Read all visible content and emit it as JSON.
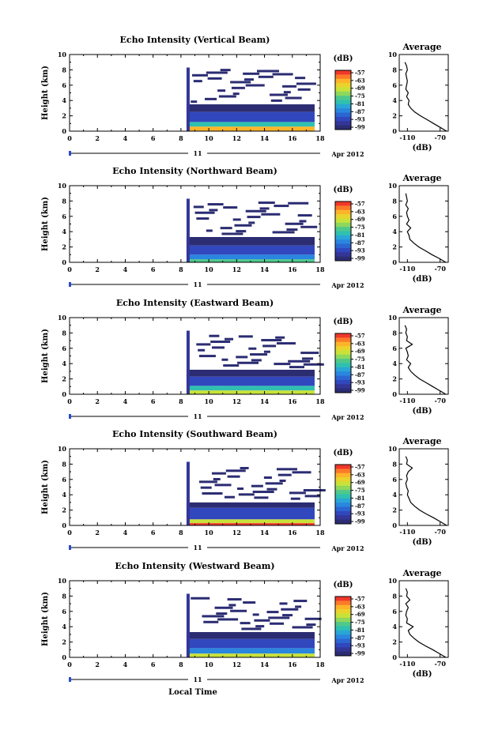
{
  "colorbar": {
    "unit": "(dB)",
    "labels": [
      "-57",
      "-63",
      "-69",
      "-75",
      "-81",
      "-87",
      "-93",
      "-99"
    ],
    "colors": [
      "#f0382b",
      "#fc7a2a",
      "#fdb42a",
      "#ead32c",
      "#c9e23a",
      "#8ed85c",
      "#4fc88b",
      "#2fc0b0",
      "#29a6d6",
      "#2a86de",
      "#2c66d2",
      "#3147bd",
      "#333697",
      "#2b2c72"
    ]
  },
  "chart_data": [
    {
      "type": "heatmap",
      "title": "Echo Intensity (Vertical Beam)",
      "ylabel": "Height (km)",
      "x_ticks": [
        "0",
        "2",
        "4",
        "6",
        "8",
        "10",
        "12",
        "14",
        "16",
        "18"
      ],
      "y_ticks": [
        "0",
        "2",
        "4",
        "6",
        "8",
        "10"
      ],
      "xlim": [
        0,
        18
      ],
      "ylim": [
        0,
        10
      ],
      "date_label": "Apr 2012",
      "day_label": "11",
      "data_start_hour": 8.4,
      "data_end_hour": 17.6,
      "echo_layers": [
        {
          "bottom_km": 0.0,
          "top_km": 0.6,
          "level_db": -63
        },
        {
          "bottom_km": 0.6,
          "top_km": 1.2,
          "level_db": -81
        },
        {
          "bottom_km": 1.2,
          "top_km": 2.5,
          "level_db": -93
        },
        {
          "bottom_km": 2.5,
          "top_km": 3.5,
          "level_db": -99
        }
      ],
      "cloud_top_km": 3.5,
      "average_profile": {
        "title": "Average",
        "xlabel": "(dB)",
        "x_ticks": [
          "-110",
          "-70"
        ],
        "y_ticks": [
          "0",
          "2",
          "4",
          "6",
          "8",
          "10"
        ],
        "xlim": [
          -120,
          -60
        ],
        "ylim": [
          0,
          10
        ],
        "height_km": [
          0,
          0.5,
          1,
          1.5,
          2,
          2.5,
          3,
          3.5,
          4,
          4.5,
          5,
          5.5,
          6,
          6.5,
          7,
          7.5,
          8,
          8.5,
          9
        ],
        "db": [
          -62,
          -70,
          -78,
          -86,
          -94,
          -101,
          -106,
          -109,
          -108,
          -111,
          -109,
          -112,
          -111,
          -110,
          -111,
          -112,
          -110,
          -111,
          -113
        ]
      }
    },
    {
      "type": "heatmap",
      "title": "Echo Intensity (Northward Beam)",
      "ylabel": "Height (km)",
      "x_ticks": [
        "0",
        "2",
        "4",
        "6",
        "8",
        "10",
        "12",
        "14",
        "16",
        "18"
      ],
      "y_ticks": [
        "0",
        "2",
        "4",
        "6",
        "8",
        "10"
      ],
      "xlim": [
        0,
        18
      ],
      "ylim": [
        0,
        10
      ],
      "date_label": "Apr 2012",
      "day_label": "11",
      "data_start_hour": 8.4,
      "data_end_hour": 17.6,
      "echo_layers": [
        {
          "bottom_km": 0.0,
          "top_km": 0.4,
          "level_db": -75
        },
        {
          "bottom_km": 0.4,
          "top_km": 1.0,
          "level_db": -87
        },
        {
          "bottom_km": 1.0,
          "top_km": 2.2,
          "level_db": -93
        },
        {
          "bottom_km": 2.2,
          "top_km": 3.3,
          "level_db": -99
        }
      ],
      "cloud_top_km": 3.3,
      "average_profile": {
        "title": "Average",
        "xlabel": "(dB)",
        "x_ticks": [
          "-110",
          "-70"
        ],
        "y_ticks": [
          "0",
          "2",
          "4",
          "6",
          "8",
          "10"
        ],
        "xlim": [
          -120,
          -60
        ],
        "ylim": [
          0,
          10
        ],
        "height_km": [
          0,
          0.5,
          1,
          1.5,
          2,
          2.5,
          3,
          3.5,
          4,
          4.5,
          5,
          5.5,
          6,
          6.5,
          7,
          7.5,
          8,
          8.5,
          9
        ],
        "db": [
          -63,
          -71,
          -80,
          -88,
          -96,
          -102,
          -107,
          -108,
          -110,
          -106,
          -111,
          -108,
          -110,
          -111,
          -109,
          -112,
          -110,
          -111,
          -112
        ]
      }
    },
    {
      "type": "heatmap",
      "title": "Echo Intensity (Eastward Beam)",
      "ylabel": "Height (km)",
      "x_ticks": [
        "0",
        "2",
        "4",
        "6",
        "8",
        "10",
        "12",
        "14",
        "16",
        "18"
      ],
      "y_ticks": [
        "0",
        "2",
        "4",
        "6",
        "8",
        "10"
      ],
      "xlim": [
        0,
        18
      ],
      "ylim": [
        0,
        10
      ],
      "date_label": "Apr 2012",
      "day_label": "11",
      "data_start_hour": 8.4,
      "data_end_hour": 17.6,
      "echo_layers": [
        {
          "bottom_km": 0.0,
          "top_km": 0.5,
          "level_db": -69
        },
        {
          "bottom_km": 0.5,
          "top_km": 1.1,
          "level_db": -81
        },
        {
          "bottom_km": 1.1,
          "top_km": 2.3,
          "level_db": -93
        },
        {
          "bottom_km": 2.3,
          "top_km": 3.2,
          "level_db": -99
        }
      ],
      "cloud_top_km": 3.2,
      "average_profile": {
        "title": "Average",
        "xlabel": "(dB)",
        "x_ticks": [
          "-110",
          "-70"
        ],
        "y_ticks": [
          "0",
          "2",
          "4",
          "6",
          "8",
          "10"
        ],
        "xlim": [
          -120,
          -60
        ],
        "ylim": [
          0,
          10
        ],
        "height_km": [
          0,
          0.5,
          1,
          1.5,
          2,
          2.5,
          3,
          3.5,
          4,
          4.5,
          5,
          5.5,
          6,
          6.5,
          7,
          7.5,
          8,
          8.5,
          9
        ],
        "db": [
          -63,
          -71,
          -79,
          -87,
          -95,
          -101,
          -106,
          -109,
          -106,
          -111,
          -109,
          -110,
          -112,
          -104,
          -111,
          -110,
          -112,
          -111,
          -113
        ]
      }
    },
    {
      "type": "heatmap",
      "title": "Echo Intensity (Southward Beam)",
      "ylabel": "Height (km)",
      "x_ticks": [
        "0",
        "2",
        "4",
        "6",
        "8",
        "10",
        "12",
        "14",
        "16",
        "18"
      ],
      "y_ticks": [
        "0",
        "2",
        "4",
        "6",
        "8",
        "10"
      ],
      "xlim": [
        0,
        18
      ],
      "ylim": [
        0,
        10
      ],
      "date_label": "Apr 2012",
      "day_label": "11",
      "data_start_hour": 8.4,
      "data_end_hour": 17.6,
      "echo_layers": [
        {
          "bottom_km": 0.0,
          "top_km": 0.3,
          "level_db": -57
        },
        {
          "bottom_km": 0.3,
          "top_km": 0.8,
          "level_db": -69
        },
        {
          "bottom_km": 0.8,
          "top_km": 2.3,
          "level_db": -93
        },
        {
          "bottom_km": 2.3,
          "top_km": 3.0,
          "level_db": -99
        }
      ],
      "cloud_top_km": 3.0,
      "average_profile": {
        "title": "Average",
        "xlabel": "(dB)",
        "x_ticks": [
          "-110",
          "-70"
        ],
        "y_ticks": [
          "0",
          "2",
          "4",
          "6",
          "8",
          "10"
        ],
        "xlim": [
          -120,
          -60
        ],
        "ylim": [
          0,
          10
        ],
        "height_km": [
          0,
          0.5,
          1,
          1.5,
          2,
          2.5,
          3,
          3.5,
          4,
          4.5,
          5,
          5.5,
          6,
          6.5,
          7,
          7.5,
          8,
          8.5,
          9
        ],
        "db": [
          -62,
          -70,
          -78,
          -87,
          -95,
          -101,
          -106,
          -108,
          -110,
          -109,
          -111,
          -112,
          -110,
          -111,
          -109,
          -104,
          -111,
          -110,
          -112
        ]
      }
    },
    {
      "type": "heatmap",
      "title": "Echo Intensity (Westward Beam)",
      "ylabel": "Height (km)",
      "x_ticks": [
        "0",
        "2",
        "4",
        "6",
        "8",
        "10",
        "12",
        "14",
        "16",
        "18"
      ],
      "y_ticks": [
        "0",
        "2",
        "4",
        "6",
        "8",
        "10"
      ],
      "xlim": [
        0,
        18
      ],
      "ylim": [
        0,
        10
      ],
      "date_label": "Apr 2012",
      "day_label": "11",
      "data_start_hour": 8.4,
      "data_end_hour": 17.6,
      "echo_layers": [
        {
          "bottom_km": 0.0,
          "top_km": 0.5,
          "level_db": -69
        },
        {
          "bottom_km": 0.5,
          "top_km": 1.2,
          "level_db": -87
        },
        {
          "bottom_km": 1.2,
          "top_km": 2.4,
          "level_db": -93
        },
        {
          "bottom_km": 2.4,
          "top_km": 3.3,
          "level_db": -99
        }
      ],
      "cloud_top_km": 3.3,
      "average_profile": {
        "title": "Average",
        "xlabel": "(dB)",
        "x_ticks": [
          "-110",
          "-70"
        ],
        "y_ticks": [
          "0",
          "2",
          "4",
          "6",
          "8",
          "10"
        ],
        "xlim": [
          -120,
          -60
        ],
        "ylim": [
          0,
          10
        ],
        "height_km": [
          0,
          0.5,
          1,
          1.5,
          2,
          2.5,
          3,
          3.5,
          4,
          4.5,
          5,
          5.5,
          6,
          6.5,
          7,
          7.5,
          8,
          8.5,
          9
        ],
        "db": [
          -63,
          -71,
          -79,
          -88,
          -96,
          -102,
          -107,
          -109,
          -103,
          -111,
          -110,
          -112,
          -111,
          -109,
          -112,
          -107,
          -111,
          -110,
          -112
        ]
      }
    }
  ],
  "footer": {
    "xlabel": "Local Time"
  }
}
